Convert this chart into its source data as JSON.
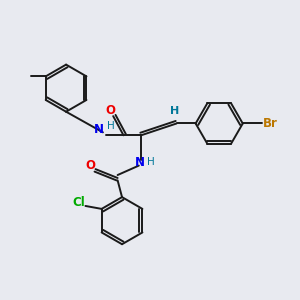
{
  "background_color": "#e8eaf0",
  "bond_color": "#1a1a1a",
  "N_color": "#0000ee",
  "O_color": "#ee0000",
  "Br_color": "#bb7700",
  "Cl_color": "#00aa00",
  "H_color": "#007799",
  "figsize": [
    3.0,
    3.0
  ],
  "dpi": 100,
  "xlim": [
    0,
    10
  ],
  "ylim": [
    0,
    10
  ]
}
